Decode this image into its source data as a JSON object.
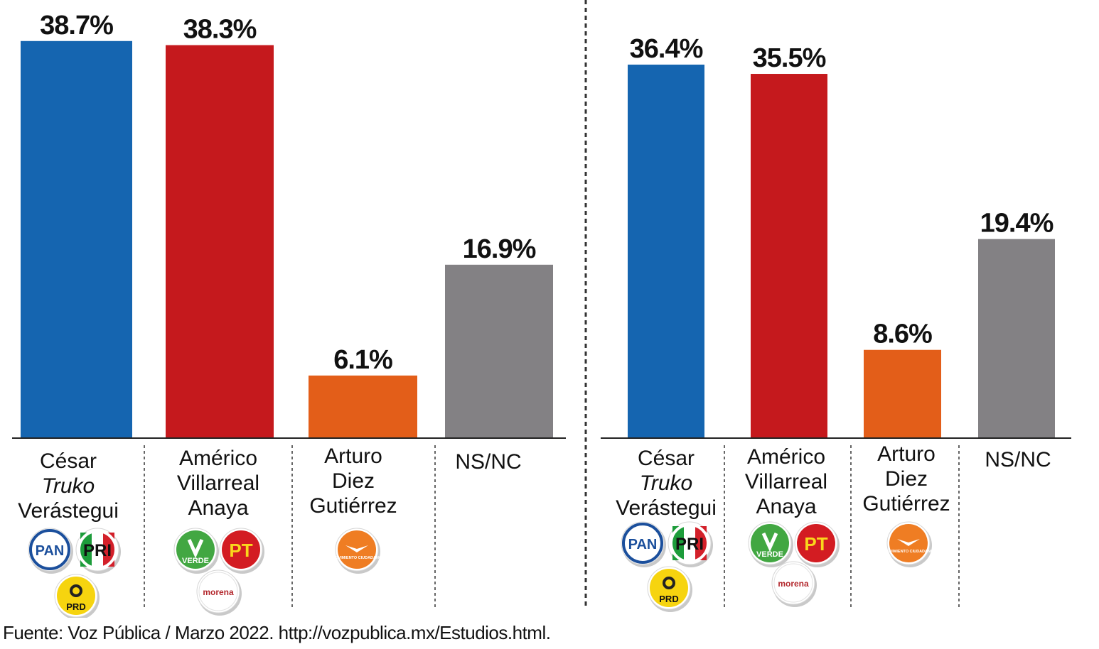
{
  "colors": {
    "blue": "#1565b0",
    "red": "#c5191d",
    "orange": "#e35e19",
    "gray": "#838184",
    "pan_blue": "#1b4f9c",
    "pri_green": "#1c9c3a",
    "pri_red": "#d3202a",
    "prd_yellow": "#f6d40f",
    "verde_green": "#42a742",
    "pt_red": "#d31c22",
    "pt_yellow": "#f9d71c",
    "morena_red": "#b3282d",
    "mc_orange": "#ef7d23"
  },
  "chart_data": [
    {
      "type": "bar",
      "categories": [
        "César Truko Verástegui",
        "Américo Villarreal Anaya",
        "Arturo Diez Gutiérrez",
        "NS/NC"
      ],
      "category_lines": [
        [
          {
            "text": "César",
            "italic": false
          },
          {
            "text": "Truko",
            "italic": true
          },
          {
            "text": "Verástegui",
            "italic": false
          }
        ],
        [
          {
            "text": "Américo",
            "italic": false
          },
          {
            "text": "Villarreal",
            "italic": false
          },
          {
            "text": "Anaya",
            "italic": false
          }
        ],
        [
          {
            "text": "Arturo",
            "italic": false
          },
          {
            "text": "Diez",
            "italic": false
          },
          {
            "text": "Gutiérrez",
            "italic": false
          }
        ],
        [
          {
            "text": "NS/NC",
            "italic": false
          }
        ]
      ],
      "values": [
        38.7,
        38.3,
        6.1,
        16.9
      ],
      "value_labels": [
        "38.7%",
        "38.3%",
        "6.1%",
        "16.9%"
      ],
      "bar_colors": [
        "#1565b0",
        "#c5191d",
        "#e35e19",
        "#838184"
      ],
      "party_logos": [
        [
          {
            "name": "pan-logo-icon",
            "text": "PAN"
          },
          {
            "name": "pri-logo-icon",
            "text": "PRI"
          },
          {
            "name": "prd-logo-icon",
            "text": "PRD"
          }
        ],
        [
          {
            "name": "verde-logo-icon",
            "text": "VERDE"
          },
          {
            "name": "pt-logo-icon",
            "text": "PT"
          },
          {
            "name": "morena-logo-icon",
            "text": "morena"
          }
        ],
        [
          {
            "name": "movimiento-ciudadano-logo-icon",
            "text": "MOVIMIENTO CIUDADANO"
          }
        ],
        []
      ],
      "ylim": [
        0,
        40
      ],
      "grid": false
    },
    {
      "type": "bar",
      "categories": [
        "César Truko Verástegui",
        "Américo Villarreal Anaya",
        "Arturo Diez Gutiérrez",
        "NS/NC"
      ],
      "category_lines": [
        [
          {
            "text": "César",
            "italic": false
          },
          {
            "text": "Truko",
            "italic": true
          },
          {
            "text": "Verástegui",
            "italic": false
          }
        ],
        [
          {
            "text": "Américo",
            "italic": false
          },
          {
            "text": "Villarreal",
            "italic": false
          },
          {
            "text": "Anaya",
            "italic": false
          }
        ],
        [
          {
            "text": "Arturo",
            "italic": false
          },
          {
            "text": "Diez",
            "italic": false
          },
          {
            "text": "Gutiérrez",
            "italic": false
          }
        ],
        [
          {
            "text": "NS/NC",
            "italic": false
          }
        ]
      ],
      "values": [
        36.4,
        35.5,
        8.6,
        19.4
      ],
      "value_labels": [
        "36.4%",
        "35.5%",
        "8.6%",
        "19.4%"
      ],
      "bar_colors": [
        "#1565b0",
        "#c5191d",
        "#e35e19",
        "#838184"
      ],
      "party_logos": [
        [
          {
            "name": "pan-logo-icon",
            "text": "PAN"
          },
          {
            "name": "pri-logo-icon",
            "text": "PRI"
          },
          {
            "name": "prd-logo-icon",
            "text": "PRD"
          }
        ],
        [
          {
            "name": "verde-logo-icon",
            "text": "VERDE"
          },
          {
            "name": "pt-logo-icon",
            "text": "PT"
          },
          {
            "name": "morena-logo-icon",
            "text": "morena"
          }
        ],
        [
          {
            "name": "movimiento-ciudadano-logo-icon",
            "text": "MOVIMIENTO CIUDADANO"
          }
        ],
        []
      ],
      "ylim": [
        0,
        40
      ],
      "grid": false
    }
  ],
  "source": "Fuente: Voz Pública / Marzo 2022. http://vozpublica.mx/Estudios.html."
}
